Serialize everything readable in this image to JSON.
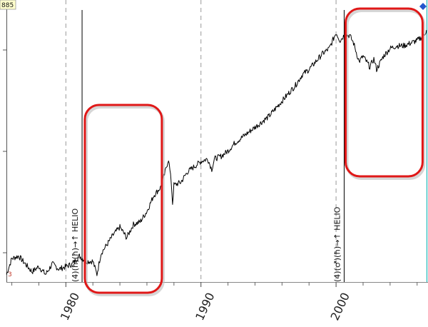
{
  "chart_data": {
    "type": "line",
    "title": "",
    "xlabel": "",
    "ylabel": "",
    "x_tick_labels": [
      "1980",
      "1990",
      "2000"
    ],
    "x_range": [
      1975.6,
      2006.7
    ],
    "y_range": [
      0,
      100
    ],
    "grid": "vertical dashed lines at decade ticks",
    "price_tag": "885",
    "events": [
      {
        "x": 1981.2,
        "label": "(4)(ħ)(ħ)→↑ HELIO"
      },
      {
        "x": 2000.6,
        "label": "(4)(♂)(ħ)→↑ HELIO"
      }
    ],
    "highlights": [
      {
        "x0": 1981.3,
        "x1": 1987.0,
        "note": "red rounded box"
      },
      {
        "x0": 2000.6,
        "x1": 2006.3,
        "note": "red rounded box"
      }
    ],
    "series": [
      {
        "x": [
          1975.6,
          1976.0,
          1976.5,
          1977.0,
          1977.5,
          1978.0,
          1978.5,
          1979.0,
          1979.5,
          1980.0,
          1980.5,
          1981.0,
          1981.5,
          1982.0,
          1982.3,
          1982.6,
          1983.0,
          1983.5,
          1984.0,
          1984.5,
          1985.0,
          1985.5,
          1986.0,
          1986.5,
          1987.0,
          1987.3,
          1987.6,
          1987.8,
          1987.9,
          1988.0,
          1988.5,
          1989.0,
          1989.5,
          1990.0,
          1990.5,
          1990.8,
          1991.0,
          1991.5,
          1992.0,
          1992.5,
          1993.0,
          1993.5,
          1994.0,
          1994.5,
          1995.0,
          1995.5,
          1996.0,
          1996.5,
          1997.0,
          1997.5,
          1998.0,
          1998.5,
          1999.0,
          1999.5,
          2000.0,
          2000.3,
          2000.6,
          2001.0,
          2001.3,
          2001.7,
          2002.0,
          2002.5,
          2002.8,
          2003.0,
          2003.5,
          2004.0,
          2004.5,
          2005.0,
          2005.5,
          2006.0,
          2006.5,
          2006.7
        ],
        "values": [
          1,
          7,
          8,
          5,
          2,
          4,
          1,
          5,
          3,
          4,
          5,
          8,
          6,
          6,
          1,
          9,
          12,
          16,
          19,
          15,
          20,
          21,
          25,
          31,
          34,
          39,
          45,
          36,
          28,
          35,
          36,
          40,
          42,
          44,
          45,
          41,
          45,
          46,
          48,
          51,
          53,
          55,
          57,
          59,
          61,
          64,
          67,
          70,
          73,
          77,
          79,
          82,
          85,
          87,
          93,
          90,
          92,
          92,
          89,
          82,
          84,
          80,
          83,
          79,
          84,
          87,
          88,
          88,
          89,
          90,
          92,
          94
        ]
      }
    ]
  }
}
